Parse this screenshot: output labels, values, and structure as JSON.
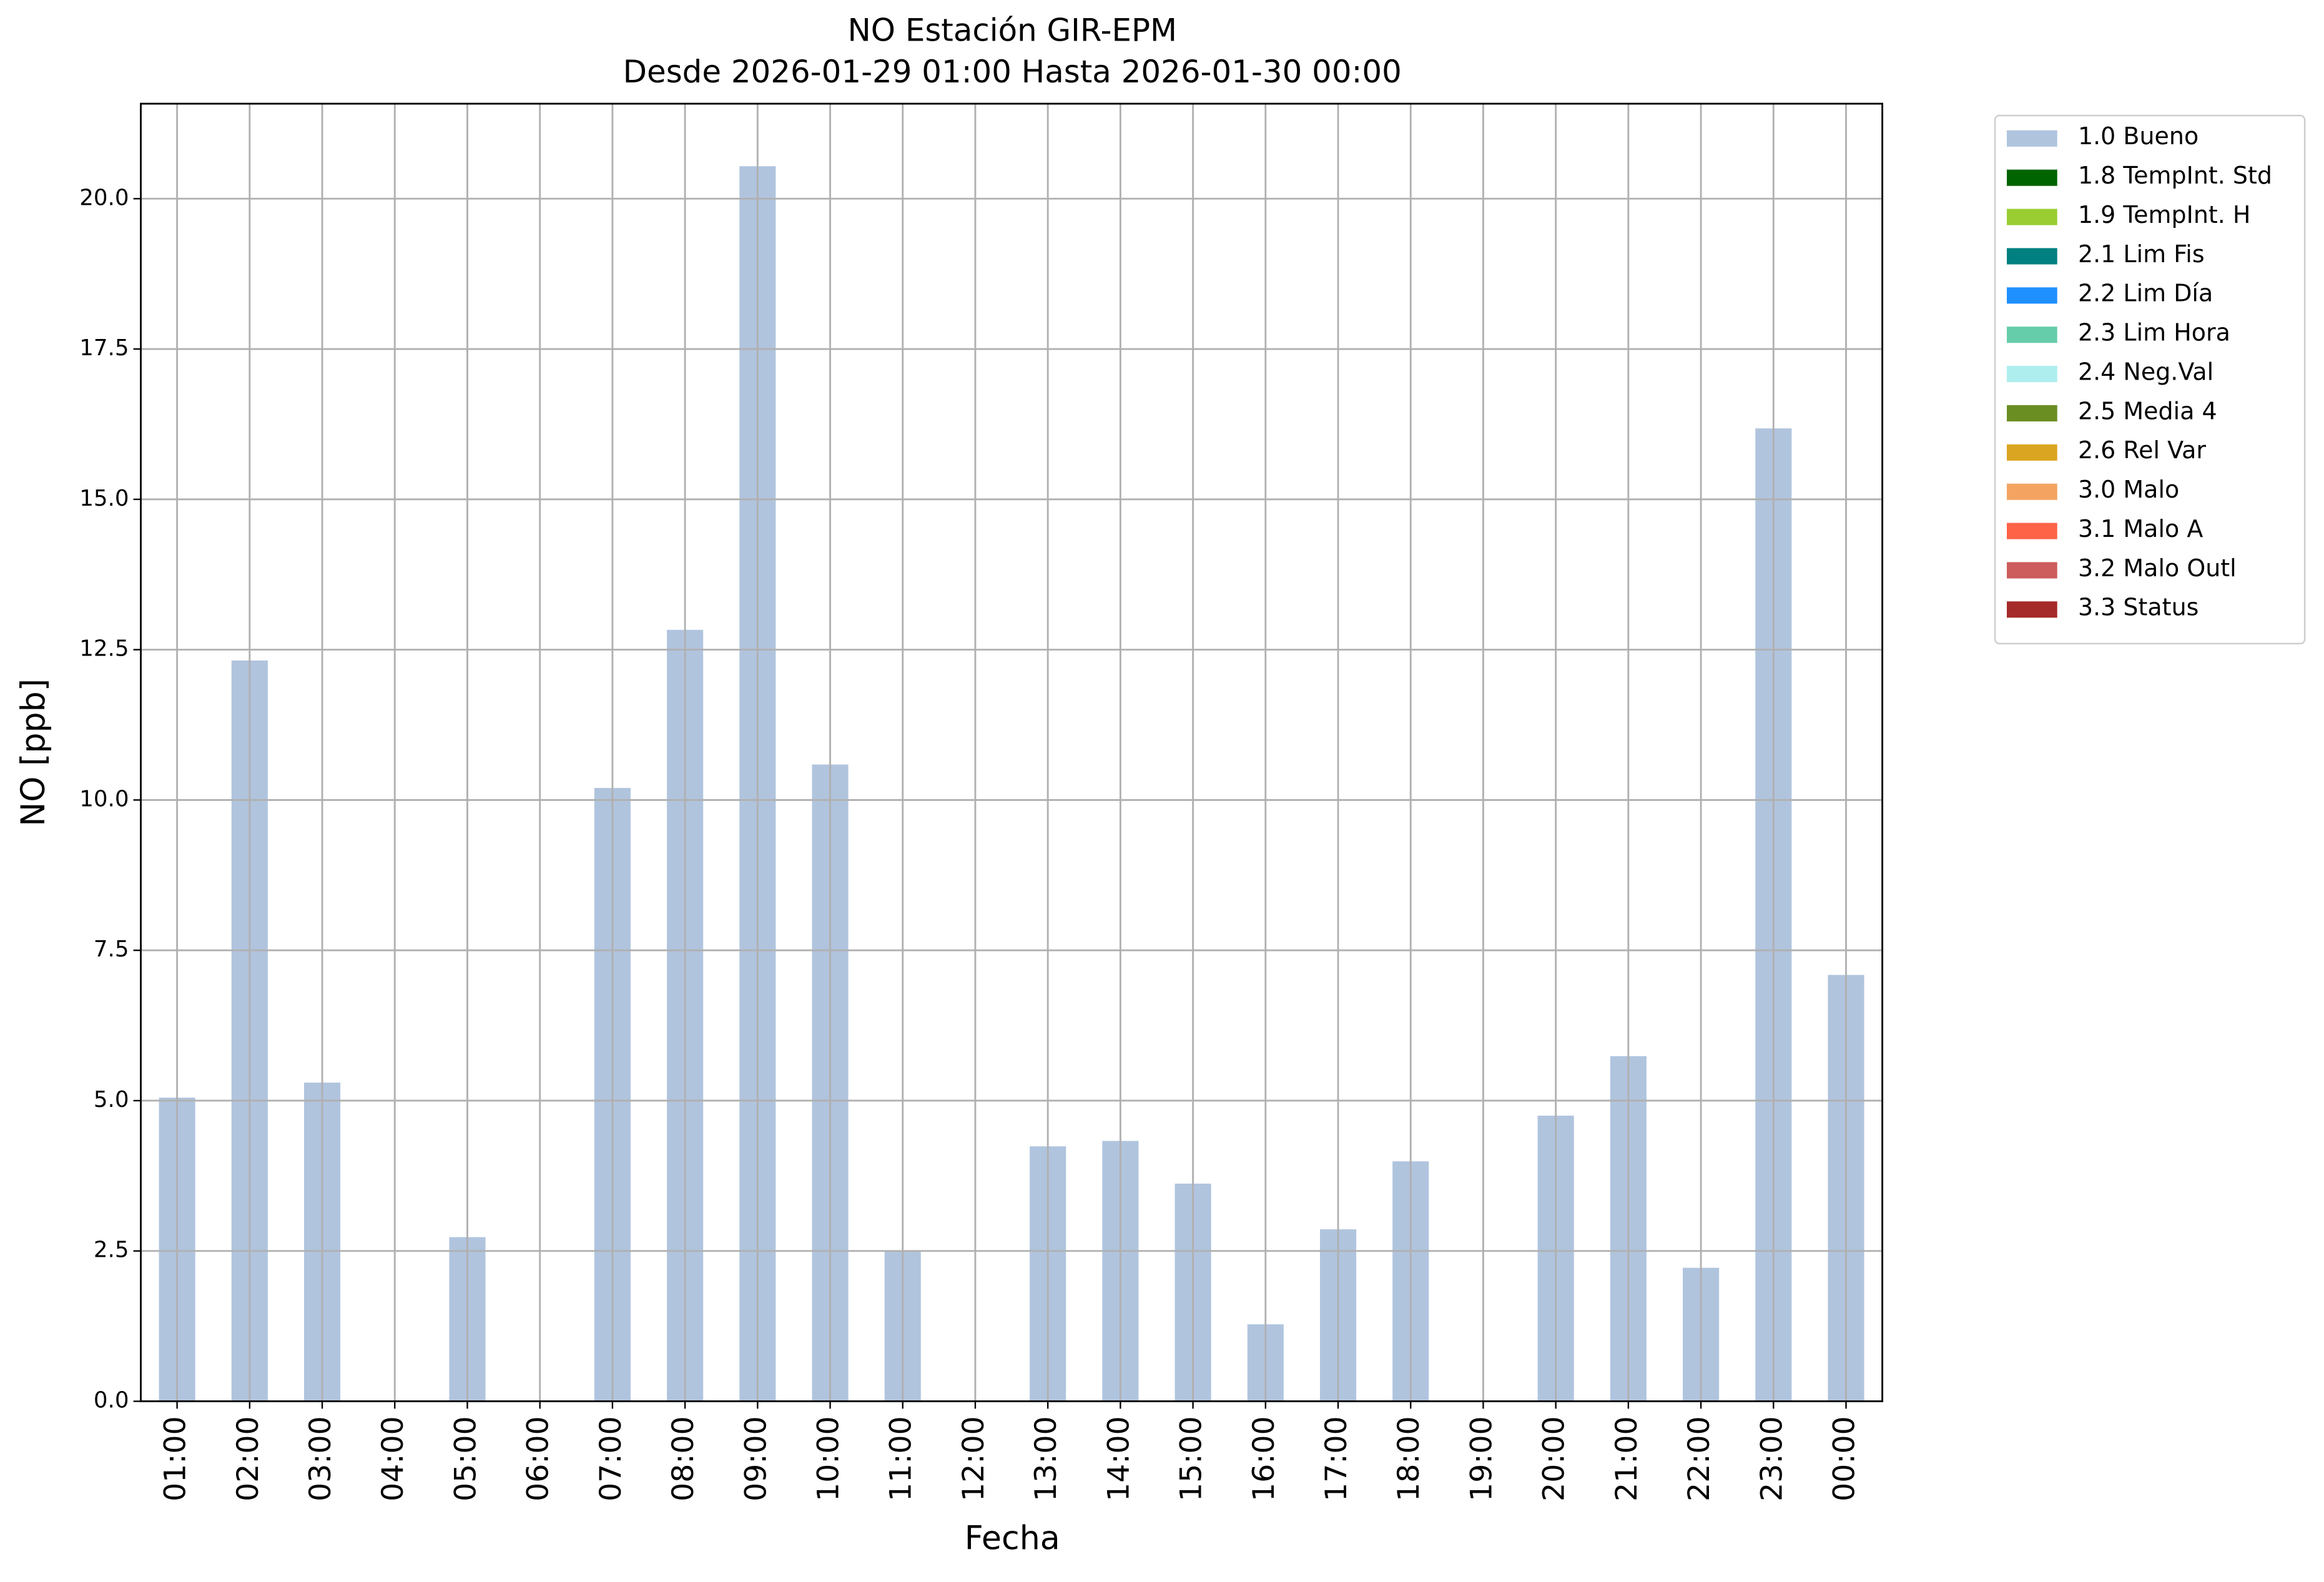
{
  "chart_data": {
    "type": "bar",
    "title": "NO Estación GIR-EPM",
    "subtitle": "Desde 2026-01-29 01:00 Hasta 2026-01-30 00:00",
    "x_label": "Fecha",
    "y_label": "NO [ppb]",
    "categories": [
      "01:00",
      "02:00",
      "03:00",
      "04:00",
      "05:00",
      "06:00",
      "07:00",
      "08:00",
      "09:00",
      "10:00",
      "11:00",
      "12:00",
      "13:00",
      "14:00",
      "15:00",
      "16:00",
      "17:00",
      "18:00",
      "19:00",
      "20:00",
      "21:00",
      "22:00",
      "23:00",
      "00:00"
    ],
    "series": [
      {
        "name": "1.0 Bueno",
        "color": "#b0c4de",
        "values": [
          5.05,
          12.32,
          5.3,
          null,
          2.73,
          null,
          10.2,
          12.83,
          20.54,
          10.59,
          2.49,
          null,
          4.24,
          4.33,
          3.62,
          1.28,
          2.86,
          3.99,
          null,
          4.75,
          5.74,
          2.22,
          16.18,
          7.09
        ]
      },
      {
        "name": "1.8 TempInt. Std",
        "color": "#006400",
        "values": [
          null,
          null,
          null,
          null,
          null,
          null,
          null,
          null,
          null,
          null,
          null,
          null,
          null,
          null,
          null,
          null,
          null,
          null,
          null,
          null,
          null,
          null,
          null,
          null
        ]
      },
      {
        "name": "1.9 TempInt. H",
        "color": "#9acd32",
        "values": [
          null,
          null,
          null,
          null,
          null,
          null,
          null,
          null,
          null,
          null,
          null,
          null,
          null,
          null,
          null,
          null,
          null,
          null,
          null,
          null,
          null,
          null,
          null,
          null
        ]
      },
      {
        "name": "2.1 Lim Fis",
        "color": "#008080",
        "values": [
          null,
          null,
          null,
          null,
          null,
          null,
          null,
          null,
          null,
          null,
          null,
          null,
          null,
          null,
          null,
          null,
          null,
          null,
          null,
          null,
          null,
          null,
          null,
          null
        ]
      },
      {
        "name": "2.2 Lim Día",
        "color": "#1e90ff",
        "values": [
          null,
          null,
          null,
          null,
          null,
          null,
          null,
          null,
          null,
          null,
          null,
          null,
          null,
          null,
          null,
          null,
          null,
          null,
          null,
          null,
          null,
          null,
          null,
          null
        ]
      },
      {
        "name": "2.3 Lim Hora",
        "color": "#66cdaa",
        "values": [
          null,
          null,
          null,
          null,
          null,
          null,
          null,
          null,
          null,
          null,
          null,
          null,
          null,
          null,
          null,
          null,
          null,
          null,
          null,
          null,
          null,
          null,
          null,
          null
        ]
      },
      {
        "name": "2.4 Neg.Val",
        "color": "#afeeee",
        "values": [
          null,
          null,
          null,
          null,
          null,
          null,
          null,
          null,
          null,
          null,
          null,
          null,
          null,
          null,
          null,
          null,
          null,
          null,
          null,
          null,
          null,
          null,
          null,
          null
        ]
      },
      {
        "name": "2.5 Media 4",
        "color": "#6b8e23",
        "values": [
          null,
          null,
          null,
          null,
          null,
          null,
          null,
          null,
          null,
          null,
          null,
          null,
          null,
          null,
          null,
          null,
          null,
          null,
          null,
          null,
          null,
          null,
          null,
          null
        ]
      },
      {
        "name": "2.6 Rel Var",
        "color": "#daa520",
        "values": [
          null,
          null,
          null,
          null,
          null,
          null,
          null,
          null,
          null,
          null,
          null,
          null,
          null,
          null,
          null,
          null,
          null,
          null,
          null,
          null,
          null,
          null,
          null,
          null
        ]
      },
      {
        "name": "3.0 Malo",
        "color": "#f4a460",
        "values": [
          null,
          null,
          null,
          null,
          null,
          null,
          null,
          null,
          null,
          null,
          null,
          null,
          null,
          null,
          null,
          null,
          null,
          null,
          null,
          null,
          null,
          null,
          null,
          null
        ]
      },
      {
        "name": "3.1 Malo A",
        "color": "#ff6347",
        "values": [
          null,
          null,
          null,
          null,
          null,
          null,
          null,
          null,
          null,
          null,
          null,
          null,
          null,
          null,
          null,
          null,
          null,
          null,
          null,
          null,
          null,
          null,
          null,
          null
        ]
      },
      {
        "name": "3.2 Malo Outl",
        "color": "#cd5c5c",
        "values": [
          null,
          null,
          null,
          null,
          null,
          null,
          null,
          null,
          null,
          null,
          null,
          null,
          null,
          null,
          null,
          null,
          null,
          null,
          null,
          null,
          null,
          null,
          null,
          null
        ]
      },
      {
        "name": "3.3 Status",
        "color": "#a52a2a",
        "values": [
          null,
          null,
          null,
          null,
          null,
          null,
          null,
          null,
          null,
          null,
          null,
          null,
          null,
          null,
          null,
          null,
          null,
          null,
          null,
          null,
          null,
          null,
          null,
          null
        ]
      }
    ],
    "ylim": [
      0,
      21.58
    ],
    "yticks": [
      {
        "value": 0,
        "label": "0.0"
      },
      {
        "value": 2.5,
        "label": "2.5"
      },
      {
        "value": 5,
        "label": "5.0"
      },
      {
        "value": 7.5,
        "label": "7.5"
      },
      {
        "value": 10,
        "label": "10.0"
      },
      {
        "value": 12.5,
        "label": "12.5"
      },
      {
        "value": 15,
        "label": "15.0"
      },
      {
        "value": 17.5,
        "label": "17.5"
      },
      {
        "value": 20,
        "label": "20.0"
      }
    ],
    "grid": true,
    "legend": "outside-right"
  }
}
